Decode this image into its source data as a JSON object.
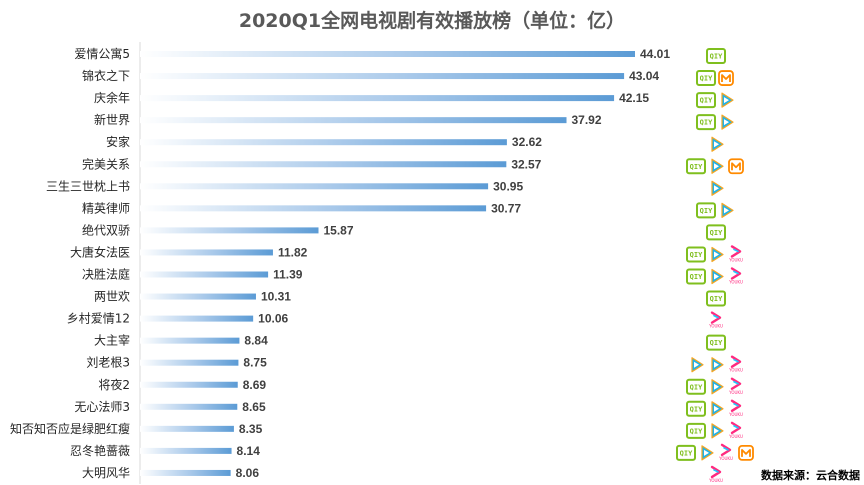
{
  "chart_data": {
    "type": "bar",
    "orientation": "horizontal",
    "title": "2020Q1全网电视剧有效播放榜（单位：亿）",
    "source": "数据来源：云合数据",
    "xlim": [
      0,
      50
    ],
    "grid": false,
    "legend": "none",
    "categories": [
      "爱情公寓5",
      "锦衣之下",
      "庆余年",
      "新世界",
      "安家",
      "完美关系",
      "三生三世枕上书",
      "精英律师",
      "绝代双骄",
      "大唐女法医",
      "决胜法庭",
      "两世欢",
      "乡村爱情12",
      "大主宰",
      "刘老根3",
      "将夜2",
      "无心法师3",
      "知否知否应是绿肥红瘦",
      "忍冬艳蔷薇",
      "大明风华"
    ],
    "values": [
      44.01,
      43.04,
      42.15,
      37.92,
      32.62,
      32.57,
      30.95,
      30.77,
      15.87,
      11.82,
      11.39,
      10.31,
      10.06,
      8.84,
      8.75,
      8.69,
      8.65,
      8.35,
      8.14,
      8.06
    ],
    "value_labels": [
      "44.01",
      "43.04",
      "42.15",
      "37.92",
      "32.62",
      "32.57",
      "30.95",
      "30.77",
      "15.87",
      "11.82",
      "11.39",
      "10.31",
      "10.06",
      "8.84",
      "8.75",
      "8.69",
      "8.65",
      "8.35",
      "8.14",
      "8.06"
    ],
    "platforms": [
      [
        "iqiyi"
      ],
      [
        "iqiyi",
        "mango"
      ],
      [
        "iqiyi",
        "tencent"
      ],
      [
        "iqiyi",
        "tencent"
      ],
      [
        "tencent"
      ],
      [
        "iqiyi",
        "tencent",
        "mango"
      ],
      [
        "tencent"
      ],
      [
        "iqiyi",
        "tencent"
      ],
      [
        "iqiyi"
      ],
      [
        "iqiyi",
        "tencent",
        "youku"
      ],
      [
        "iqiyi",
        "tencent",
        "youku"
      ],
      [
        "iqiyi"
      ],
      [
        "youku"
      ],
      [
        "iqiyi"
      ],
      [
        "tencent",
        "tencent",
        "youku"
      ],
      [
        "iqiyi",
        "tencent",
        "youku"
      ],
      [
        "iqiyi",
        "tencent",
        "youku"
      ],
      [
        "iqiyi",
        "tencent",
        "youku"
      ],
      [
        "iqiyi",
        "tencent",
        "youku",
        "mango"
      ],
      [
        "youku"
      ]
    ],
    "bar_color": "#5b9bd5",
    "platform_colors": {
      "iqiyi": "#7fbf1e",
      "tencent": "#20b2e8",
      "tencent_accent": "#f5a623",
      "youku": "#ff2a7f",
      "youku_accent": "#1ec8ff",
      "mango": "#ff8a00"
    },
    "platform_logo_text": {
      "iqiyi": "QIY",
      "youku": "YOUKU"
    }
  }
}
